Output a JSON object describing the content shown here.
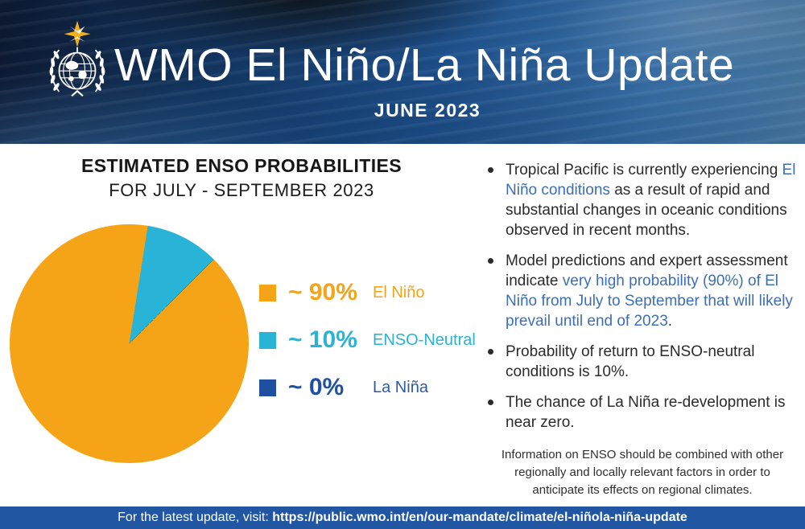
{
  "header": {
    "title": "WMO El Niño/La Niña Update",
    "date": "JUNE 2023"
  },
  "chart_section": {
    "title": "ESTIMATED ENSO PROBABILITIES",
    "subtitle": "FOR JULY - SEPTEMBER 2023"
  },
  "chart_data": {
    "type": "pie",
    "title": "ESTIMATED ENSO PROBABILITIES FOR JULY - SEPTEMBER 2023",
    "start_angle_deg": 45,
    "legend_position": "right",
    "slices": [
      {
        "label": "El Niño",
        "value_pct": 90,
        "display_pct": "~ 90%",
        "color": "#f5a418",
        "label_color": "#f0a salad"
      },
      {
        "label": "ENSO-Neutral",
        "value_pct": 10,
        "display_pct": "~ 10%",
        "color": "#29b3d7",
        "label_color": "#29b3d7"
      },
      {
        "label": "La Niña",
        "value_pct": 0,
        "display_pct": "~ 0%",
        "color": "#1e4fa1",
        "label_color": "#2d5aa8"
      }
    ]
  },
  "bullets": [
    {
      "runs": [
        {
          "t": "Tropical Pacific is currently experiencing ",
          "c": "dark"
        },
        {
          "t": "El Niño conditions",
          "c": "blue"
        },
        {
          "t": " as a result of rapid and substantial changes in oceanic conditions observed in recent months.",
          "c": "dark"
        }
      ]
    },
    {
      "runs": [
        {
          "t": "Model predictions and expert assessment indicate ",
          "c": "dark"
        },
        {
          "t": "very high probability (90%) of El Niño from July to September that will likely prevail until end of 2023",
          "c": "blue"
        },
        {
          "t": ".",
          "c": "dark"
        }
      ]
    },
    {
      "runs": [
        {
          "t": "Probability of return to ENSO-neutral conditions is 10%.",
          "c": "dark"
        }
      ]
    },
    {
      "runs": [
        {
          "t": "The chance of La Niña re-development is near zero.",
          "c": "dark"
        }
      ]
    }
  ],
  "footnote": "Information on ENSO should be combined with other regionally and locally relevant factors in order to anticipate its effects on regional climates.",
  "footer": {
    "prefix": "For the latest update, visit: ",
    "url": "https://public.wmo.int/en/our-mandate/climate/el-niñola-niña-update"
  },
  "colors": {
    "link_blue": "#3d6eb5",
    "footer_bar": "#2156a3",
    "el_nino_orange": "#f5a418",
    "enso_neutral_cyan": "#29b3d7",
    "la_nina_navy": "#1e4fa1"
  }
}
